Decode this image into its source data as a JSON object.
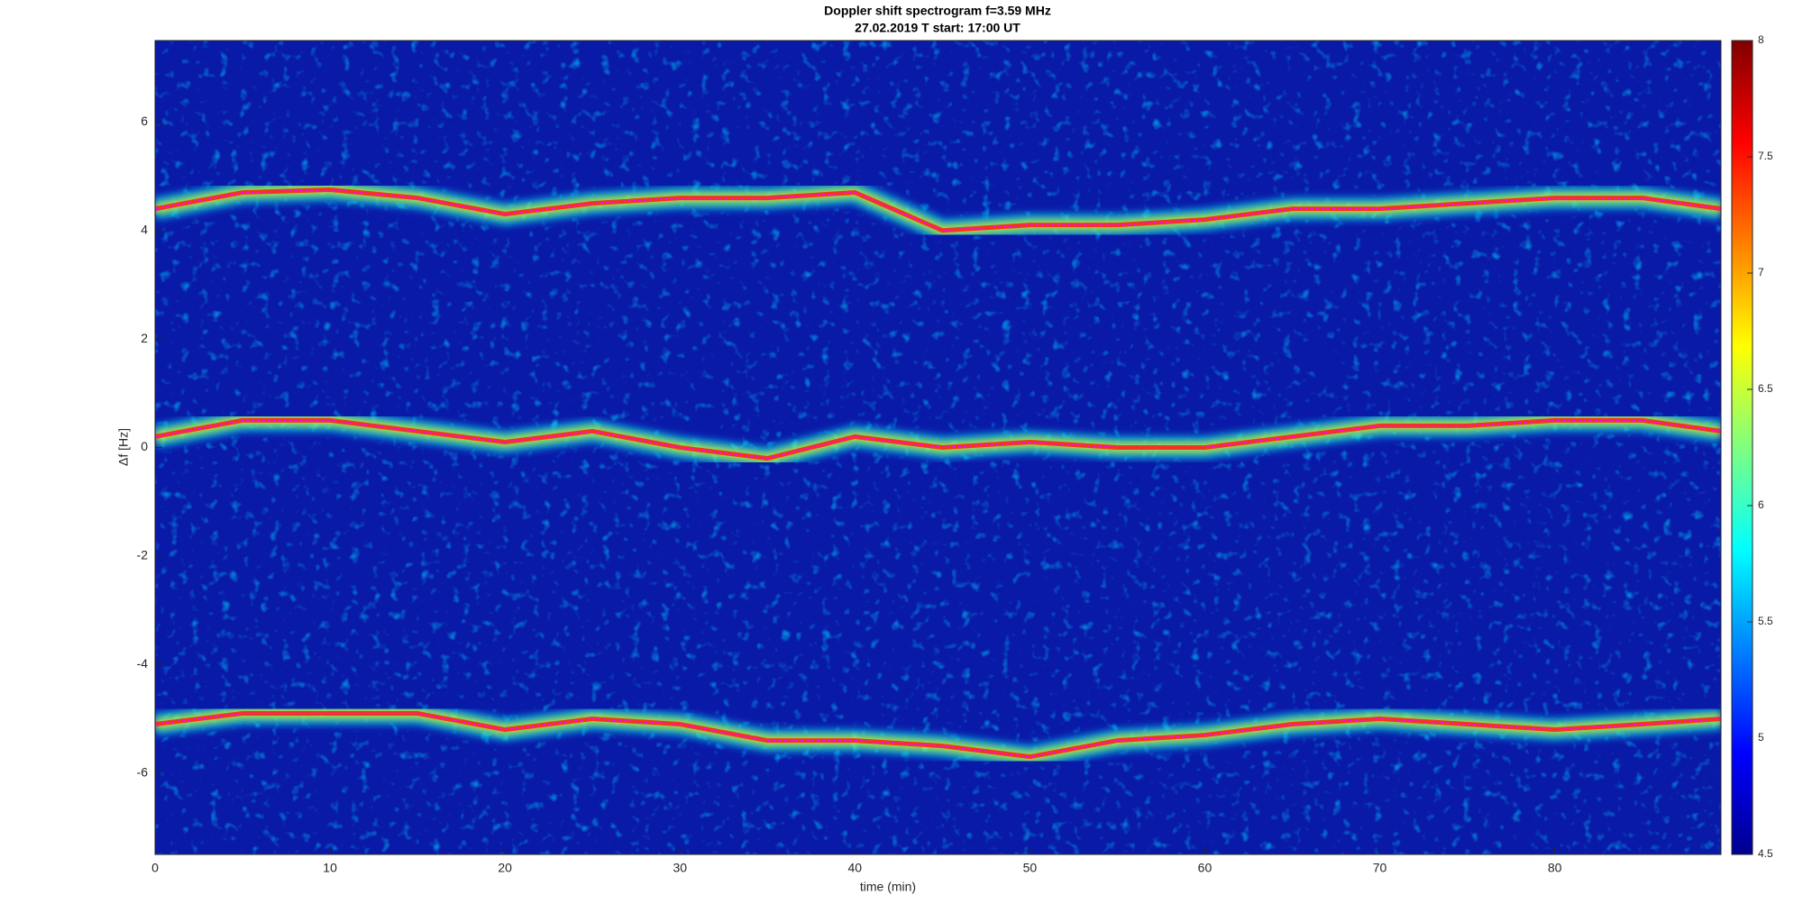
{
  "chart_data": {
    "type": "spectrogram",
    "title": [
      "Doppler shift spectrogram f=3.59 MHz",
      "27.02.2019   T start: 17:00 UT"
    ],
    "x_label": "time (min)",
    "y_label": "Δf [Hz]",
    "x": [
      0,
      5,
      10,
      15,
      20,
      25,
      30,
      35,
      40,
      45,
      50,
      55,
      60,
      65,
      70,
      75,
      80,
      85,
      89.5
    ],
    "series": [
      {
        "color": "#ff00ff",
        "values": [
          4.4,
          4.7,
          4.75,
          4.6,
          4.3,
          4.5,
          4.6,
          4.6,
          4.7,
          4.0,
          4.1,
          4.1,
          4.2,
          4.4,
          4.4,
          4.5,
          4.6,
          4.6,
          4.4
        ]
      },
      {
        "color": "#ff00ff",
        "values": [
          0.2,
          0.5,
          0.5,
          0.3,
          0.1,
          0.3,
          0.0,
          -0.2,
          0.2,
          0.0,
          0.1,
          0.0,
          0.0,
          0.2,
          0.4,
          0.4,
          0.5,
          0.5,
          0.3
        ]
      },
      {
        "color": "#ff00ff",
        "values": [
          -5.1,
          -4.9,
          -4.9,
          -4.9,
          -5.2,
          -5.0,
          -5.1,
          -5.4,
          -5.4,
          -5.5,
          -5.7,
          -5.4,
          -5.3,
          -5.1,
          -5.0,
          -5.1,
          -5.2,
          -5.1,
          -5.0
        ]
      }
    ],
    "xlim": [
      0,
      89.5
    ],
    "xticks": [
      0,
      10,
      20,
      30,
      40,
      50,
      60,
      70,
      80
    ],
    "ylim": [
      -7.5,
      7.5
    ],
    "yticks": [
      -6,
      -4,
      -2,
      0,
      2,
      4,
      6
    ],
    "colorbar": {
      "colormap": "jet",
      "clim": [
        4.5,
        8
      ],
      "ticks": [
        4.5,
        5,
        5.5,
        6,
        6.5,
        7,
        7.5,
        8
      ]
    }
  }
}
